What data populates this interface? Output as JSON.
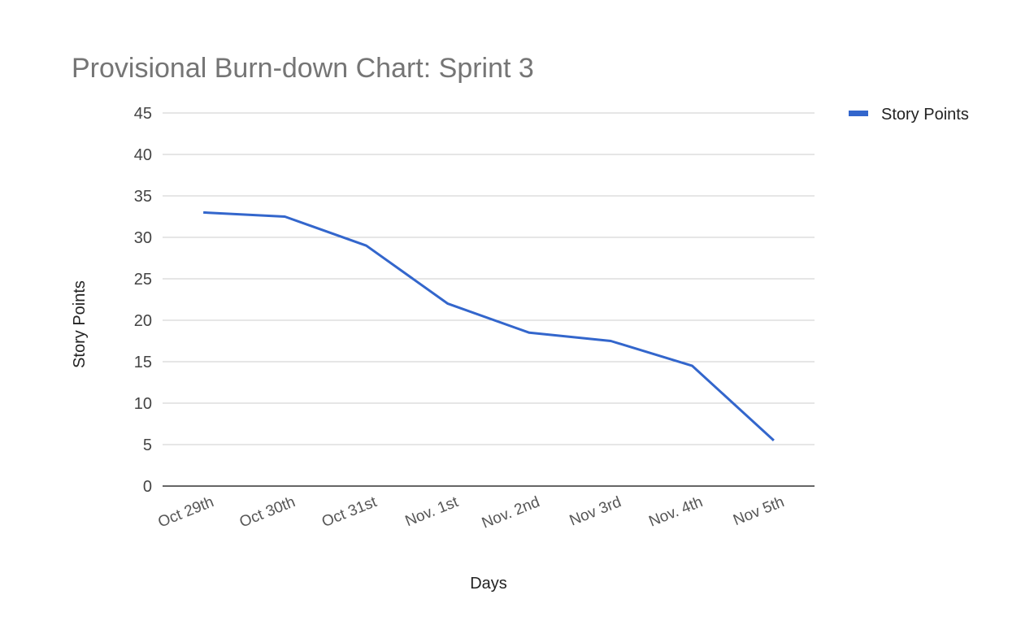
{
  "colors": {
    "series": "#3366cc",
    "grid": "#cccccc",
    "title": "#757575"
  },
  "chart_data": {
    "type": "line",
    "title": "Provisional Burn-down Chart: Sprint 3",
    "xlabel": "Days",
    "ylabel": "Story Points",
    "categories": [
      "Oct 29th",
      "Oct 30th",
      "Oct 31st",
      "Nov. 1st",
      "Nov. 2nd",
      "Nov 3rd",
      "Nov. 4th",
      "Nov 5th"
    ],
    "series": [
      {
        "name": "Story Points",
        "color": "#3366cc",
        "values": [
          33,
          32.5,
          29,
          22,
          18.5,
          17.5,
          14.5,
          5.5
        ]
      }
    ],
    "ylim": [
      0,
      45
    ],
    "yticks": [
      0,
      5,
      10,
      15,
      20,
      25,
      30,
      35,
      40,
      45
    ],
    "grid": true,
    "legend_position": "right"
  }
}
